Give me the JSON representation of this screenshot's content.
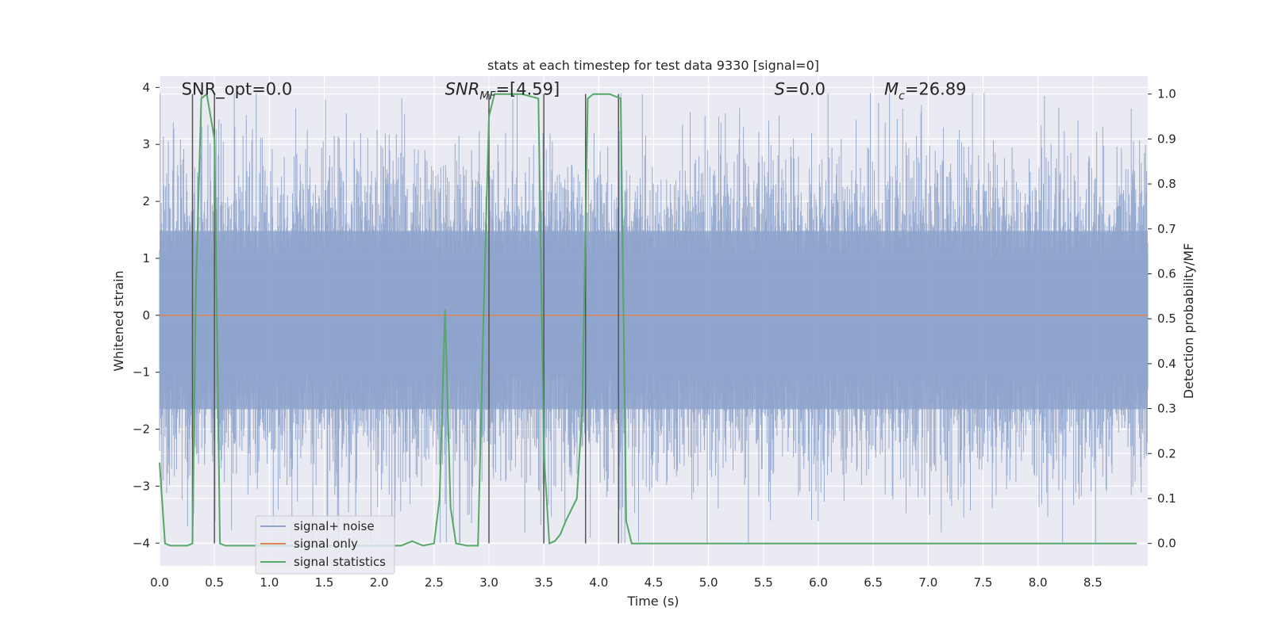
{
  "chart_data": {
    "type": "line",
    "title": "stats at each timestep for test data 9330 [signal=0]",
    "xlabel": "Time (s)",
    "ylabel_left": "Whitened strain",
    "ylabel_right": "Detection probability/MF",
    "xlim": [
      0,
      9.0
    ],
    "ylim_left": [
      -4.4,
      4.2
    ],
    "ylim_right": [
      -0.05,
      1.04
    ],
    "x_ticks": [
      0.0,
      0.5,
      1.0,
      1.5,
      2.0,
      2.5,
      3.0,
      3.5,
      4.0,
      4.5,
      5.0,
      5.5,
      6.0,
      6.5,
      7.0,
      7.5,
      8.0,
      8.5
    ],
    "x_tick_labels": [
      "0.0",
      "0.5",
      "1.0",
      "1.5",
      "2.0",
      "2.5",
      "3.0",
      "3.5",
      "4.0",
      "4.5",
      "5.0",
      "5.5",
      "6.0",
      "6.5",
      "7.0",
      "7.5",
      "8.0",
      "8.5"
    ],
    "y_ticks_left": [
      -4,
      -3,
      -2,
      -1,
      0,
      1,
      2,
      3,
      4
    ],
    "y_tick_labels_left": [
      "−4",
      "−3",
      "−2",
      "−1",
      "0",
      "1",
      "2",
      "3",
      "4"
    ],
    "y_ticks_right": [
      0.0,
      0.1,
      0.2,
      0.3,
      0.4,
      0.5,
      0.6,
      0.7,
      0.8,
      0.9,
      1.0
    ],
    "y_tick_labels_right": [
      "0.0",
      "0.1",
      "0.2",
      "0.3",
      "0.4",
      "0.5",
      "0.6",
      "0.7",
      "0.8",
      "0.9",
      "1.0"
    ],
    "grid": true,
    "background": "#eaeaf2",
    "legend_position": "lower-left",
    "series": [
      {
        "name": "signal+ noise",
        "color": "#8fa4cc",
        "axis": "left",
        "kind": "noise_band",
        "band": [
          -1.65,
          1.48
        ],
        "peak_max": 3.9,
        "peak_min": -4.0
      },
      {
        "name": "signal only",
        "color": "#dd8452",
        "axis": "left",
        "kind": "line",
        "x": [
          0,
          9.0
        ],
        "y": [
          0,
          0
        ]
      },
      {
        "name": "signal statistics",
        "color": "#55a868",
        "axis": "right",
        "kind": "line",
        "x": [
          0.0,
          0.05,
          0.1,
          0.15,
          0.2,
          0.25,
          0.3,
          0.33,
          0.38,
          0.43,
          0.5,
          0.55,
          0.6,
          0.7,
          0.8,
          0.9,
          1.0,
          1.5,
          2.0,
          2.2,
          2.3,
          2.4,
          2.5,
          2.55,
          2.6,
          2.65,
          2.7,
          2.8,
          2.9,
          2.95,
          3.0,
          3.05,
          3.15,
          3.3,
          3.45,
          3.5,
          3.55,
          3.6,
          3.65,
          3.7,
          3.8,
          3.85,
          3.9,
          3.95,
          4.0,
          4.05,
          4.1,
          4.2,
          4.25,
          4.3,
          5.0,
          6.0,
          7.0,
          8.0,
          8.9
        ],
        "y": [
          0.18,
          0.0,
          -0.005,
          -0.005,
          -0.005,
          -0.005,
          0.0,
          0.56,
          0.99,
          1.0,
          0.9,
          0.0,
          -0.005,
          -0.005,
          -0.005,
          -0.005,
          -0.005,
          -0.005,
          -0.005,
          -0.005,
          0.005,
          -0.005,
          0.0,
          0.1,
          0.52,
          0.08,
          0.0,
          -0.005,
          -0.005,
          0.5,
          0.95,
          1.0,
          1.0,
          1.0,
          0.99,
          0.2,
          0.0,
          0.005,
          0.02,
          0.05,
          0.1,
          0.3,
          0.99,
          1.0,
          1.0,
          1.0,
          1.0,
          0.99,
          0.05,
          0.0,
          0.0,
          0.0,
          0.0,
          0.0,
          0.0
        ]
      }
    ],
    "vertical_markers_x": [
      0.3,
      0.5,
      3.0,
      3.5,
      3.88,
      4.18
    ],
    "annotations": [
      {
        "id": "snr-opt",
        "text": "SNR_opt=0.0",
        "x": 0.2,
        "y_right": 1.0
      },
      {
        "id": "snr-mf",
        "text": "SNR",
        "sub": "MF",
        "text_rest": "=[4.59]",
        "x": 2.6,
        "y_right": 1.0
      },
      {
        "id": "s-stat",
        "text": "S",
        "text_rest": "=0.0",
        "x": 5.6,
        "y_right": 1.0
      },
      {
        "id": "chirp-mass",
        "text": "M",
        "sub": "c",
        "text_rest": "=26.89",
        "x": 6.6,
        "y_right": 1.0
      }
    ]
  }
}
